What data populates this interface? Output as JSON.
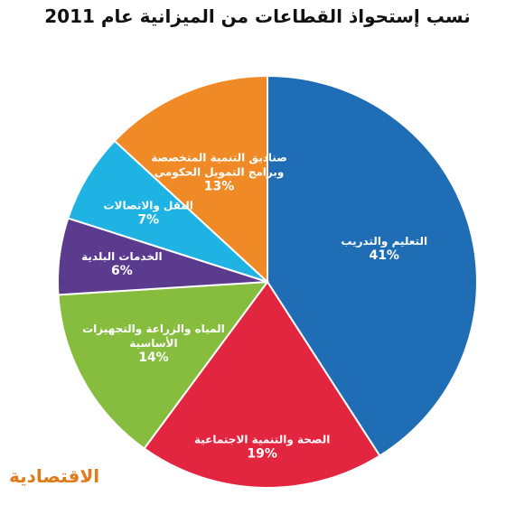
{
  "chart_data": {
    "type": "pie",
    "title": "نسب إستحواذ القطاعات من الميزانية عام 2011",
    "slices": [
      {
        "label_lines": [
          "التعليم والتدريب"
        ],
        "value": 41,
        "value_label": "41%",
        "color": "#1f6db5"
      },
      {
        "label_lines": [
          "الصحة والتنمية الاجتماعية"
        ],
        "value": 19,
        "value_label": "19%",
        "color": "#e3263f"
      },
      {
        "label_lines": [
          "المياه والزراعة والتجهيزات",
          "الأساسية"
        ],
        "value": 14,
        "value_label": "14%",
        "color": "#86bd3f"
      },
      {
        "label_lines": [
          "الخدمات البلدية"
        ],
        "value": 6,
        "value_label": "6%",
        "color": "#5a3b8e"
      },
      {
        "label_lines": [
          "النقل والاتصالات"
        ],
        "value": 7,
        "value_label": "7%",
        "color": "#1fb3e3"
      },
      {
        "label_lines": [
          "صناديق التنمية المتخصصة",
          "وبرامج التمويل الحكومي"
        ],
        "value": 13,
        "value_label": "13%",
        "color": "#f08a27"
      }
    ]
  },
  "brand": {
    "logo_text": "الاقتصادية",
    "color": "#e07b1a"
  }
}
